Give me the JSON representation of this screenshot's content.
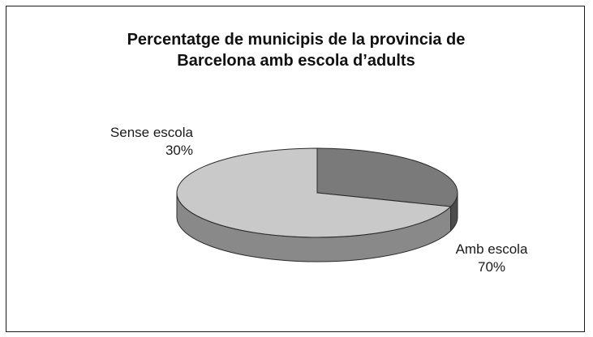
{
  "chart_data": {
    "type": "pie",
    "title_lines": [
      "Percentatge de municipis de la provincia de",
      "Barcelona amb escola d’adults"
    ],
    "slices": [
      {
        "label": "Sense escola",
        "value": 30,
        "value_label": "30%",
        "color": "#7a7a7a"
      },
      {
        "label": "Amb escola",
        "value": 70,
        "value_label": "70%",
        "color": "#c9c9c9"
      }
    ],
    "legend": "none",
    "three_d": true
  }
}
